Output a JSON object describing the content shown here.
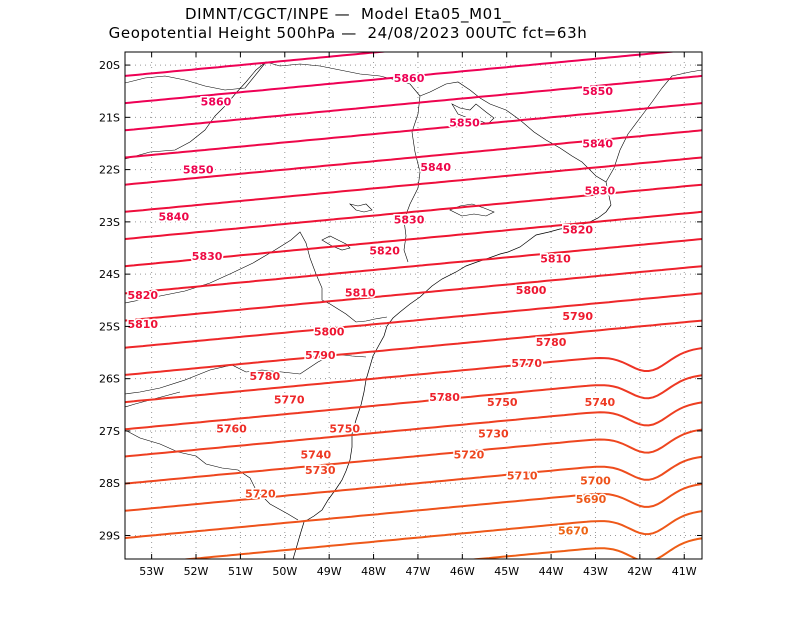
{
  "header": {
    "line1": "DIMNT/CGCT/INPE —  Model Eta05_M01_",
    "line2": "Geopotential Height 500hPa —  24/08/2023 00UTC fct=63h"
  },
  "chart_data": {
    "type": "contour-map",
    "title": "Geopotential Height 500hPa",
    "model": "Eta05_M01_",
    "run": "24/08/2023 00UTC",
    "forecast": "fct=63h",
    "lon_range": [
      -53.6,
      -40.6
    ],
    "lat_range": [
      -29.45,
      -19.75
    ],
    "x_ticks": [
      "53W",
      "52W",
      "51W",
      "50W",
      "49W",
      "48W",
      "47W",
      "46W",
      "45W",
      "44W",
      "43W",
      "42W",
      "41W"
    ],
    "y_ticks": [
      "20S",
      "21S",
      "22S",
      "23S",
      "24S",
      "25S",
      "26S",
      "27S",
      "28S",
      "29S"
    ],
    "contour_interval": 10,
    "contour_labels": [
      {
        "value": 5860,
        "lon": -51.55,
        "lat": -20.7
      },
      {
        "value": 5860,
        "lon": -47.2,
        "lat": -20.25
      },
      {
        "value": 5850,
        "lon": -42.95,
        "lat": -20.5
      },
      {
        "value": 5850,
        "lon": -45.95,
        "lat": -21.1
      },
      {
        "value": 5850,
        "lon": -51.95,
        "lat": -22.0
      },
      {
        "value": 5840,
        "lon": -42.95,
        "lat": -21.5
      },
      {
        "value": 5840,
        "lon": -46.6,
        "lat": -21.95
      },
      {
        "value": 5840,
        "lon": -52.5,
        "lat": -22.9
      },
      {
        "value": 5830,
        "lon": -42.9,
        "lat": -22.4
      },
      {
        "value": 5830,
        "lon": -47.2,
        "lat": -22.95
      },
      {
        "value": 5830,
        "lon": -51.75,
        "lat": -23.65
      },
      {
        "value": 5820,
        "lon": -43.4,
        "lat": -23.15
      },
      {
        "value": 5820,
        "lon": -47.75,
        "lat": -23.55
      },
      {
        "value": 5820,
        "lon": -53.2,
        "lat": -24.4
      },
      {
        "value": 5810,
        "lon": -43.9,
        "lat": -23.7
      },
      {
        "value": 5810,
        "lon": -48.3,
        "lat": -24.35
      },
      {
        "value": 5810,
        "lon": -53.2,
        "lat": -24.95
      },
      {
        "value": 5800,
        "lon": -44.45,
        "lat": -24.3
      },
      {
        "value": 5800,
        "lon": -49.0,
        "lat": -25.1
      },
      {
        "value": 5790,
        "lon": -43.4,
        "lat": -24.8
      },
      {
        "value": 5790,
        "lon": -49.2,
        "lat": -25.55
      },
      {
        "value": 5780,
        "lon": -44.0,
        "lat": -25.3
      },
      {
        "value": 5780,
        "lon": -50.45,
        "lat": -25.95
      },
      {
        "value": 5780,
        "lon": -46.4,
        "lat": -26.35
      },
      {
        "value": 5770,
        "lon": -44.55,
        "lat": -25.7
      },
      {
        "value": 5770,
        "lon": -49.9,
        "lat": -26.4
      },
      {
        "value": 5760,
        "lon": -51.2,
        "lat": -26.95
      },
      {
        "value": 5750,
        "lon": -45.1,
        "lat": -26.45
      },
      {
        "value": 5750,
        "lon": -48.65,
        "lat": -26.95
      },
      {
        "value": 5740,
        "lon": -42.9,
        "lat": -26.45
      },
      {
        "value": 5740,
        "lon": -49.3,
        "lat": -27.45
      },
      {
        "value": 5730,
        "lon": -45.3,
        "lat": -27.05
      },
      {
        "value": 5730,
        "lon": -49.2,
        "lat": -27.75
      },
      {
        "value": 5720,
        "lon": -45.85,
        "lat": -27.45
      },
      {
        "value": 5720,
        "lon": -50.55,
        "lat": -28.2
      },
      {
        "value": 5710,
        "lon": -44.65,
        "lat": -27.85
      },
      {
        "value": 5700,
        "lon": -43.0,
        "lat": -27.95
      },
      {
        "value": 5690,
        "lon": -43.1,
        "lat": -28.3
      },
      {
        "value": 5670,
        "lon": -43.5,
        "lat": -28.9
      }
    ],
    "colors": {
      "high": "#ee0055",
      "mid": "#ee1530",
      "low": "#ee7010",
      "coast": "#000000",
      "grid": "#999999"
    }
  }
}
